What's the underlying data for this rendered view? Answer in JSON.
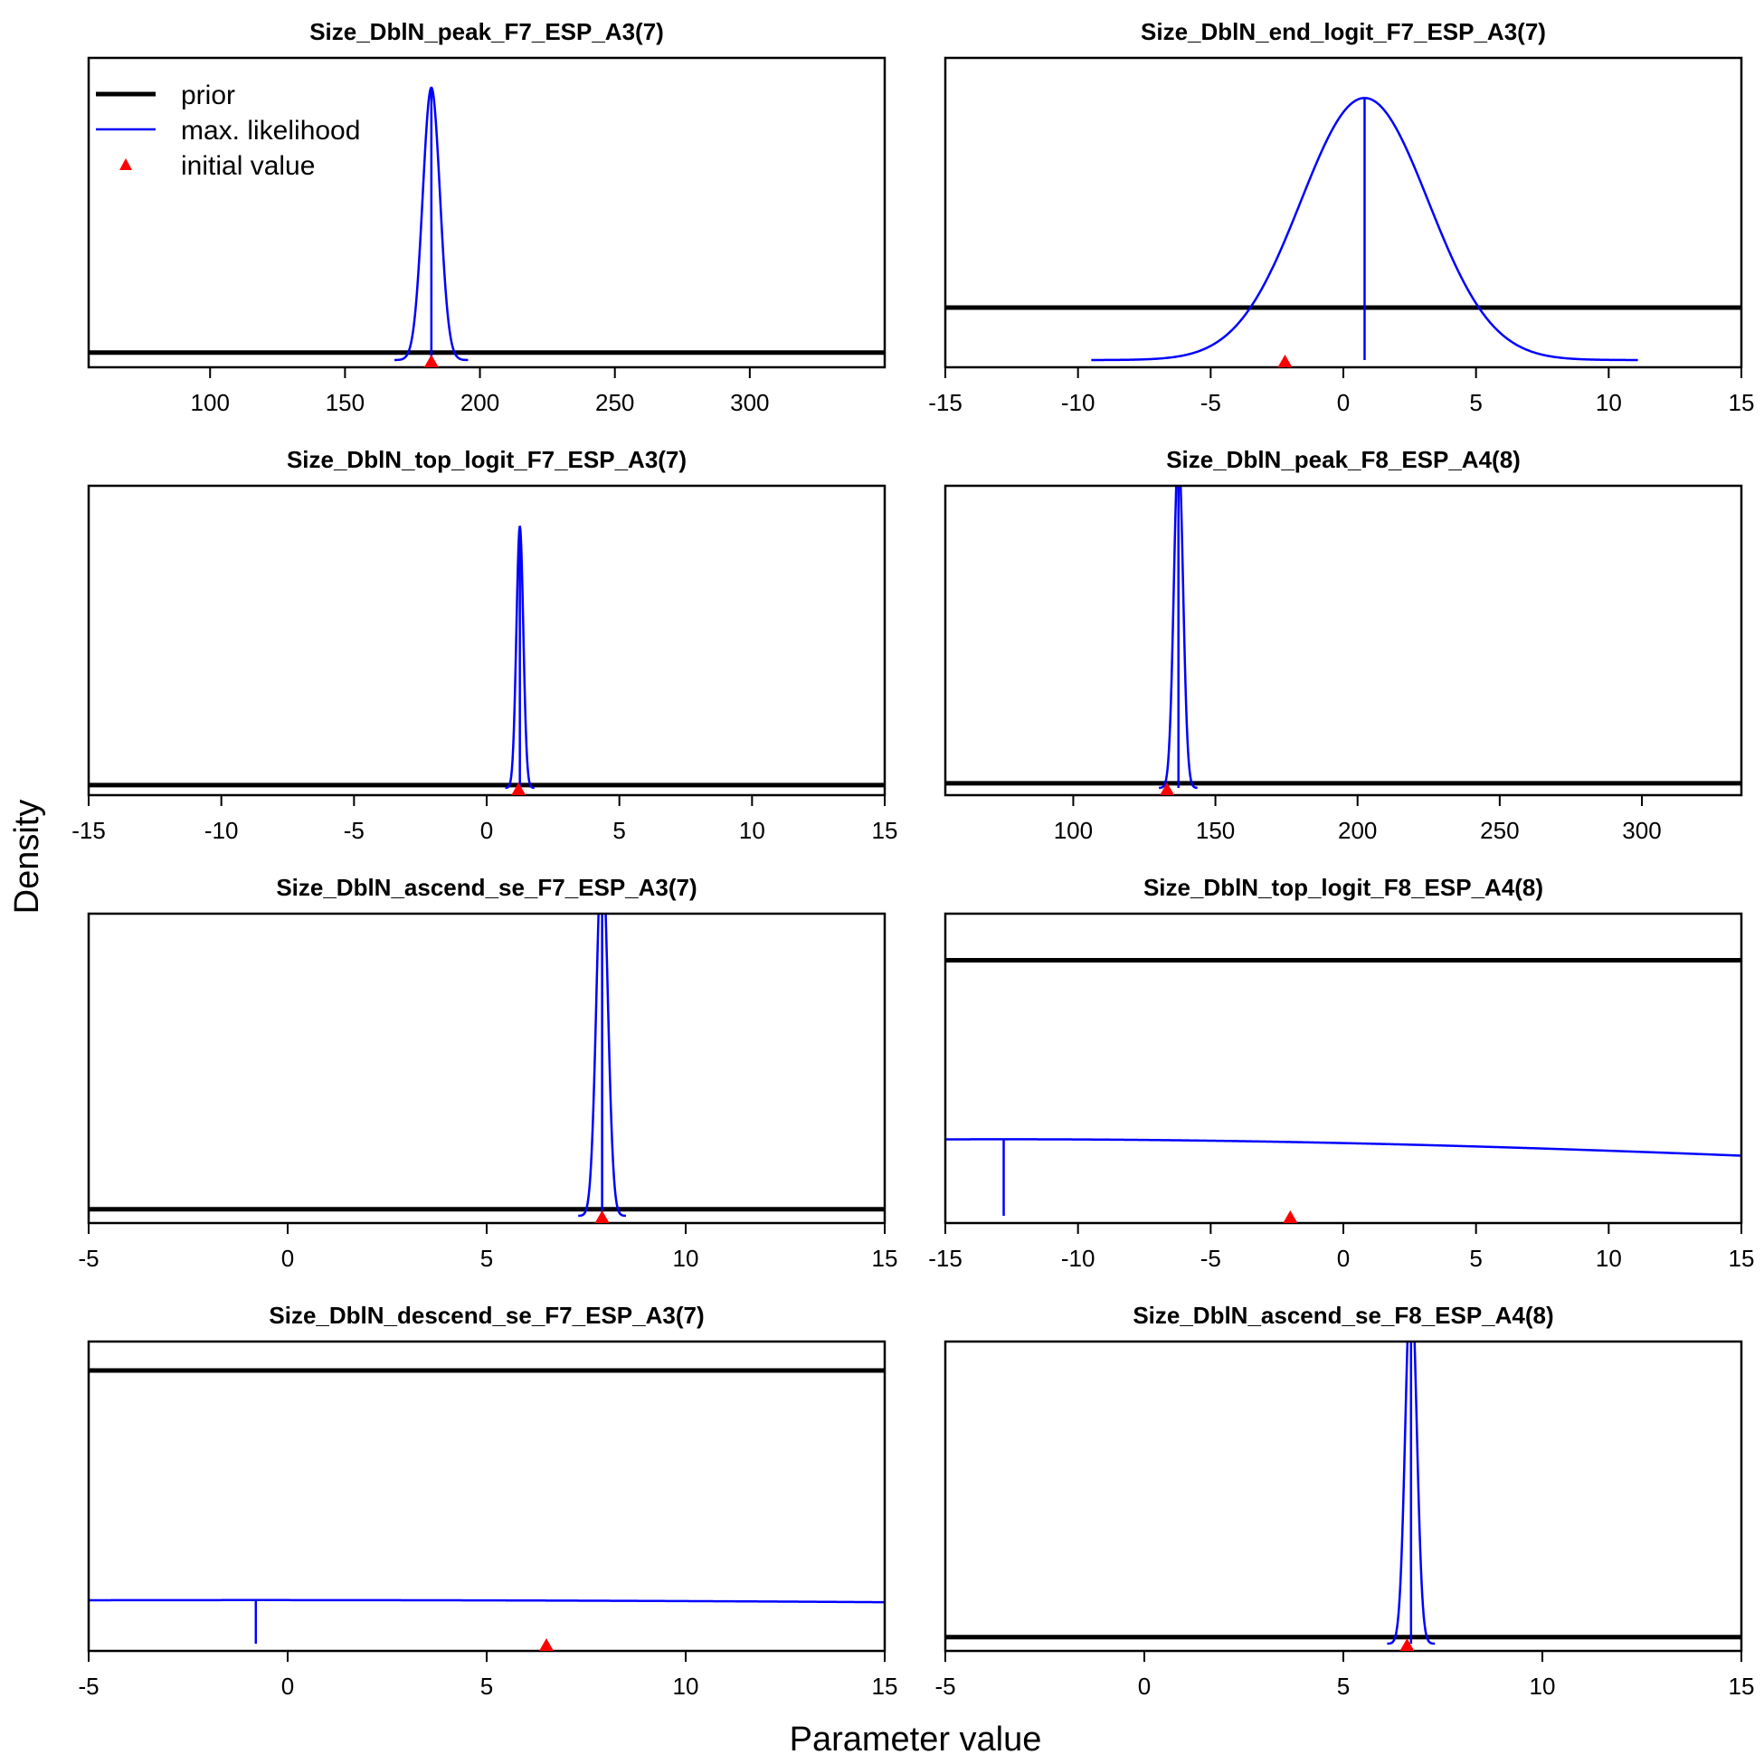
{
  "figure": {
    "ylabel": "Density",
    "xlabel": "Parameter value",
    "legend": {
      "position": "top-left",
      "entries": [
        "prior",
        "max. likelihood",
        "initial value"
      ]
    }
  },
  "colors": {
    "prior": "#000000",
    "mle": "#0000ff",
    "init": "#ff0000",
    "axis": "#000000"
  },
  "chart_data": [
    {
      "type": "line",
      "title": "Size_DblN_peak_F7_ESP_A3(7)",
      "xlim": [
        55,
        350
      ],
      "xticks": [
        100,
        150,
        200,
        250,
        300
      ],
      "ymax": 0.125,
      "prior": {
        "kind": "uniform",
        "density": 0.0034
      },
      "mle": {
        "mean": 182,
        "sd": 3.2
      },
      "initial": 182,
      "show_legend": true
    },
    {
      "type": "line",
      "title": "Size_DblN_end_logit_F7_ESP_A3(7)",
      "xlim": [
        -15,
        15
      ],
      "xticks": [
        -15,
        -10,
        -5,
        0,
        5,
        10,
        15
      ],
      "ymax": 0.1733,
      "prior": {
        "kind": "uniform",
        "density": 0.0333
      },
      "mle": {
        "mean": 0.8,
        "sd": 2.4
      },
      "initial": -2.2
    },
    {
      "type": "line",
      "title": "Size_DblN_top_logit_F7_ESP_A3(7)",
      "xlim": [
        -15,
        15
      ],
      "xticks": [
        -15,
        -10,
        -5,
        0,
        5,
        10,
        15
      ],
      "ymax": 3.2,
      "prior": {
        "kind": "uniform",
        "density": 0.0333
      },
      "mle": {
        "mean": 1.25,
        "sd": 0.13
      },
      "initial": 1.2
    },
    {
      "type": "line",
      "title": "Size_DblN_peak_F8_ESP_A4(8)",
      "xlim": [
        55,
        335
      ],
      "xticks": [
        100,
        150,
        200,
        250,
        300
      ],
      "ymax": 0.2,
      "prior": {
        "kind": "uniform",
        "density": 0.0034
      },
      "mle": {
        "mean": 137,
        "sd": 1.6
      },
      "initial": 133
    },
    {
      "type": "line",
      "title": "Size_DblN_ascend_se_F7_ESP_A3(7)",
      "xlim": [
        -5,
        15
      ],
      "xticks": [
        -5,
        0,
        5,
        10,
        15
      ],
      "ymax": 2.1,
      "prior": {
        "kind": "uniform",
        "density": 0.05
      },
      "mle": {
        "mean": 7.9,
        "sd": 0.14
      },
      "initial": 7.9
    },
    {
      "type": "line",
      "title": "Size_DblN_top_logit_F8_ESP_A4(8)",
      "xlim": [
        -15,
        15
      ],
      "xticks": [
        -15,
        -10,
        -5,
        0,
        5,
        10,
        15
      ],
      "ymax": 0.0356,
      "prior": {
        "kind": "uniform",
        "density": 0.0333
      },
      "mle": {
        "mean": -12.8,
        "sd": 40
      },
      "initial": -2
    },
    {
      "type": "line",
      "title": "Size_DblN_descend_se_F7_ESP_A3(7)",
      "xlim": [
        -5,
        15
      ],
      "xticks": [
        -5,
        0,
        5,
        10,
        15
      ],
      "ymax": 0.05,
      "prior": {
        "kind": "uniform",
        "density": 0.05
      },
      "mle": {
        "mean": -0.8,
        "sd": 50
      },
      "initial": 6.5
    },
    {
      "type": "line",
      "title": "Size_DblN_ascend_se_F8_ESP_A4(8)",
      "xlim": [
        -5,
        15
      ],
      "xticks": [
        -5,
        0,
        5,
        10,
        15
      ],
      "ymax": 2.1,
      "prior": {
        "kind": "uniform",
        "density": 0.05
      },
      "mle": {
        "mean": 6.7,
        "sd": 0.14
      },
      "initial": 6.6
    }
  ]
}
